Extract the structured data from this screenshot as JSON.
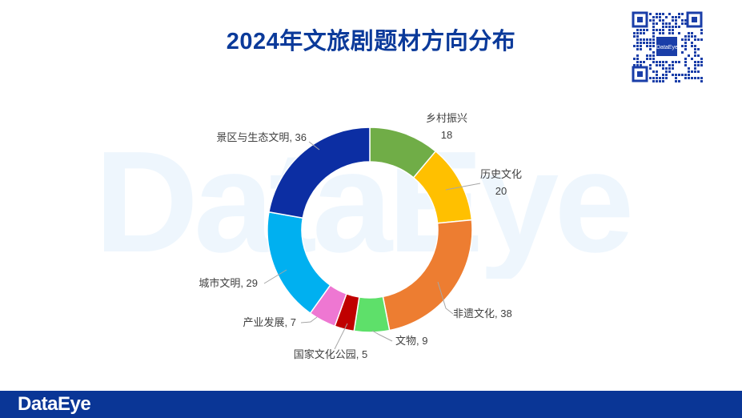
{
  "page": {
    "title": "2024年文旅剧题材方向分布",
    "watermark_text": "DataEye",
    "qr_logo_text": "DataEye",
    "footer_logo": "DataEye"
  },
  "colors": {
    "title": "#0b3a9a",
    "footer": "#0a3696"
  },
  "chart_data": {
    "type": "pie",
    "donut": true,
    "title": "2024年文旅剧题材方向分布",
    "slices": [
      {
        "name": "乡村振兴",
        "value": 18,
        "color": "#70ad47",
        "label": "乡村振兴\n18"
      },
      {
        "name": "历史文化",
        "value": 20,
        "color": "#ffc000",
        "label": "历史文化\n20"
      },
      {
        "name": "非遗文化",
        "value": 38,
        "color": "#ed7d31",
        "label": "非遗文化, 38"
      },
      {
        "name": "文物",
        "value": 9,
        "color": "#5ee06a",
        "label": "文物, 9"
      },
      {
        "name": "国家文化公园",
        "value": 5,
        "color": "#c00000",
        "label": "国家文化公园, 5"
      },
      {
        "name": "产业发展",
        "value": 7,
        "color": "#ee77d2",
        "label": "产业发展, 7"
      },
      {
        "name": "城市文明",
        "value": 29,
        "color": "#00b0f0",
        "label": "城市文明, 29"
      },
      {
        "name": "景区与生态文明",
        "value": 36,
        "color": "#0c2ea3",
        "label": "景区与生态文明, 36"
      }
    ]
  }
}
